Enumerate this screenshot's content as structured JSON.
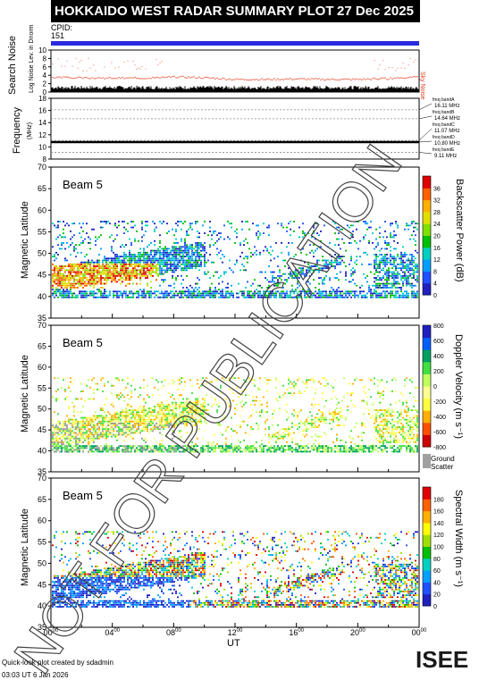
{
  "header": {
    "title": "HOKKAIDO WEST RADAR SUMMARY PLOT",
    "date": "27 Dec 2025",
    "cpid_label": "CPID:",
    "cpid_value": "151"
  },
  "panels": {
    "noise": {
      "ylabel": "Search Noise",
      "ylabel_sub": "Log Noise Lev. in Dnorm",
      "yticks": [
        "0",
        "2",
        "4",
        "6",
        "8",
        "10"
      ],
      "right_label": "Sky Noise"
    },
    "frequency": {
      "ylabel": "Frequency",
      "ylabel_sub": "(MHz)",
      "yticks": [
        "8",
        "10",
        "12",
        "14",
        "16",
        "18"
      ],
      "bands": [
        {
          "label": "freq bandA",
          "value": "16.11 MHz"
        },
        {
          "label": "freq bandB",
          "value": "14.64 MHz"
        },
        {
          "label": "freq bandC",
          "value": "11.07 MHz"
        },
        {
          "label": "freq bandD",
          "value": "10.80 MHz"
        },
        {
          "label": "freq bandE",
          "value": "9.11 MHz"
        }
      ]
    },
    "power": {
      "beam": "Beam  5",
      "ylabel": "Magnetic Latitude",
      "cbar_label": "Backscatter Power (dB)",
      "cbar_ticks": [
        "0",
        "4",
        "8",
        "12",
        "16",
        "20",
        "24",
        "28",
        "32",
        "36"
      ]
    },
    "velocity": {
      "beam": "Beam  5",
      "ylabel": "Magnetic Latitude",
      "cbar_label": "Doppler Velocity (m s⁻¹)",
      "cbar_ticks": [
        "-800",
        "-600",
        "-400",
        "-200",
        "0",
        "200",
        "400",
        "600",
        "800"
      ],
      "ground_label": "Ground",
      "ground_label2": "Scatter"
    },
    "width": {
      "beam": "Beam  5",
      "ylabel": "Magnetic Latitude",
      "cbar_label": "Spectral Width (m s⁻¹)",
      "cbar_ticks": [
        "0",
        "20",
        "40",
        "60",
        "80",
        "100",
        "120",
        "140",
        "160",
        "180"
      ]
    }
  },
  "lat_ticks": [
    "35",
    "40",
    "45",
    "50",
    "55",
    "60",
    "65",
    "70"
  ],
  "x_ticks": [
    "00",
    "04",
    "08",
    "12",
    "16",
    "20",
    "00"
  ],
  "x_tick_sup": "00",
  "xlabel": "UT",
  "footer": {
    "credit": "Quick-look plot created by sdadmin",
    "stamp": "03:03 UT 6 Jan 2026",
    "logo": "ISEE"
  },
  "watermark": "NOT FOR PUBLICATION",
  "colors": {
    "title_bg": "#000000",
    "cpid_bar": "#2a2ae0",
    "sky_noise": "#e04020",
    "ground": "#a0a0a0"
  },
  "chart_data": [
    {
      "type": "line",
      "title": "Search Noise",
      "ylim": [
        0,
        10
      ],
      "xlim": [
        0,
        24
      ],
      "series": [
        {
          "name": "Sky Noise",
          "x": [
            0,
            2,
            4,
            6,
            8,
            10,
            12,
            14,
            16,
            18,
            20,
            22,
            24
          ],
          "values": [
            3.5,
            3.4,
            3.3,
            3.3,
            3.6,
            3.4,
            3.0,
            3.0,
            3.1,
            3.0,
            3.0,
            3.2,
            3.6
          ]
        }
      ]
    },
    {
      "type": "scatter",
      "title": "Frequency",
      "ylim": [
        8,
        18
      ],
      "series": [
        {
          "name": "Frequency",
          "x": [
            0,
            24
          ],
          "values": [
            10.8,
            10.8
          ]
        }
      ]
    },
    {
      "type": "heatmap",
      "title": "Backscatter Power (dB)",
      "ylim": [
        35,
        70
      ],
      "xlim": [
        0,
        24
      ],
      "clim": [
        0,
        36
      ]
    },
    {
      "type": "heatmap",
      "title": "Doppler Velocity (m s⁻¹)",
      "ylim": [
        35,
        70
      ],
      "xlim": [
        0,
        24
      ],
      "clim": [
        -800,
        800
      ]
    },
    {
      "type": "heatmap",
      "title": "Spectral Width (m s⁻¹)",
      "ylim": [
        35,
        70
      ],
      "xlim": [
        0,
        24
      ],
      "clim": [
        0,
        180
      ]
    }
  ]
}
